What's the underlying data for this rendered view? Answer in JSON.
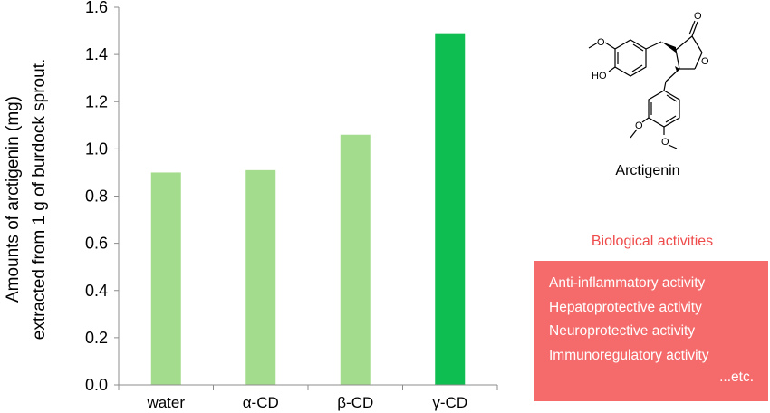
{
  "chart_data": {
    "type": "bar",
    "categories": [
      "water",
      "α-CD",
      "β-CD",
      "γ-CD"
    ],
    "values": [
      0.9,
      0.91,
      1.06,
      1.49
    ],
    "ylabel_line1": "Amounts of arctigenin (mg)",
    "ylabel_line2": "extracted from 1 g of burdock sprout.",
    "ylim": [
      0,
      1.6
    ],
    "yticks": [
      "0.0",
      "0.2",
      "0.4",
      "0.6",
      "0.8",
      "1.0",
      "1.2",
      "1.4",
      "1.6"
    ],
    "colors": [
      "#a3dc8c",
      "#a3dc8c",
      "#a3dc8c",
      "#0fbe50"
    ]
  },
  "structure": {
    "name": "Arctigenin",
    "atom_labels": [
      "O",
      "HO",
      "O",
      "O",
      "O",
      "O"
    ]
  },
  "biological": {
    "title": "Biological activities",
    "items": [
      "Anti-inflammatory activity",
      "Hepatoprotective activity",
      "Neuroprotective activity",
      "Immunoregulatory activity"
    ],
    "etc": "...etc."
  }
}
